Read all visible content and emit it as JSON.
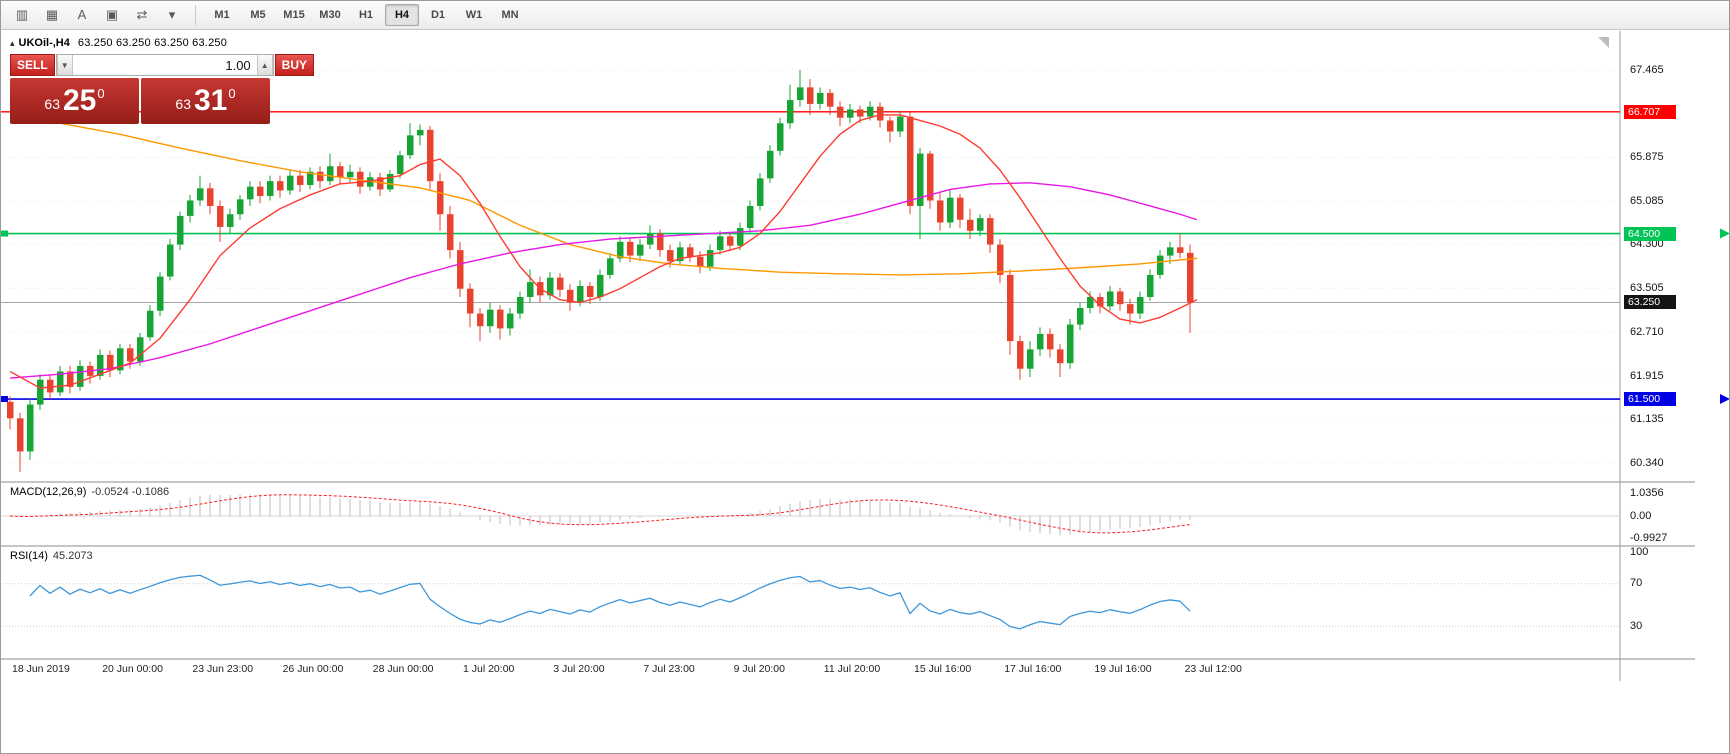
{
  "toolbar": {
    "icons": [
      {
        "name": "chart-type-icon",
        "glyph": "▥"
      },
      {
        "name": "grid-icon",
        "glyph": "▦"
      },
      {
        "name": "text-tool-icon",
        "glyph": "A"
      },
      {
        "name": "template-icon",
        "glyph": "▣"
      },
      {
        "name": "crosshair-tool-icon",
        "glyph": "⇄"
      },
      {
        "name": "dropdown-caret-icon",
        "glyph": "▾"
      }
    ],
    "timeframes": [
      {
        "label": "M1"
      },
      {
        "label": "M5"
      },
      {
        "label": "M15"
      },
      {
        "label": "M30"
      },
      {
        "label": "H1"
      },
      {
        "label": "H4",
        "active": true
      },
      {
        "label": "D1"
      },
      {
        "label": "W1"
      },
      {
        "label": "MN"
      }
    ]
  },
  "header": {
    "collapse_icon": "▴",
    "symbol": "UKOil-,H4",
    "ohlc": "63.250 63.250 63.250 63.250"
  },
  "trade_panel": {
    "sell_label": "SELL",
    "buy_label": "BUY",
    "volume": "1.00",
    "volume_down_glyph": "▼",
    "volume_up_glyph": "▲",
    "sell_price": {
      "small": "63",
      "big": "25",
      "sup": "0"
    },
    "buy_price": {
      "small": "63",
      "big": "31",
      "sup": "0"
    }
  },
  "indicators": {
    "macd_label": "MACD(12,26,9)",
    "macd_values": "-0.0524 -0.1086",
    "rsi_label": "RSI(14)",
    "rsi_value": "45.2073"
  },
  "chart_data": {
    "type": "candlestick",
    "symbol": "UKOil-",
    "period": "H4",
    "ylim": [
      60.01,
      68.14
    ],
    "colors": {
      "bull": "#16a534",
      "bear": "#e8432e",
      "ma_fast_red": "#ff3b30",
      "ma_slow_orange": "#ff9800",
      "ma_mid_magenta": "#e817e8",
      "hline_red": "#ff0000",
      "hline_green": "#00c455",
      "hline_blue": "#0000e6",
      "current_price_line": "#a6a6a6",
      "macd_hist": "#bdbdbd",
      "macd_signal": "#ff1f1f",
      "rsi_line": "#3f97d9"
    },
    "price_ticks": [
      67.465,
      65.875,
      65.085,
      64.3,
      63.505,
      62.71,
      61.915,
      61.135,
      60.34
    ],
    "price_badges": [
      {
        "text": "66.707",
        "price": 66.707,
        "bg": "#ff0000",
        "name": "resistance-line-price-badge"
      },
      {
        "text": "64.500",
        "price": 64.5,
        "bg": "#00c455",
        "name": "support-line-price-badge"
      },
      {
        "text": "63.250",
        "price": 63.25,
        "bg": "#141414",
        "name": "current-price-badge"
      },
      {
        "text": "61.500",
        "price": 61.5,
        "bg": "#0000e6",
        "name": "lower-line-price-badge"
      }
    ],
    "hlines": [
      {
        "price": 66.707,
        "color_key": "hline_red",
        "width": 1.4,
        "edge_marker": false,
        "name": "horizontal-line-66-707"
      },
      {
        "price": 64.5,
        "color_key": "hline_green",
        "width": 1.6,
        "edge_marker": true,
        "name": "horizontal-line-64-500"
      },
      {
        "price": 61.5,
        "color_key": "hline_blue",
        "width": 1.6,
        "edge_marker": true,
        "name": "horizontal-line-61-500"
      },
      {
        "price": 63.25,
        "color_key": "current_price_line",
        "width": 1,
        "edge_marker": false,
        "name": "current-price-line"
      }
    ],
    "ohlc": [
      [
        61.45,
        61.55,
        60.95,
        61.15
      ],
      [
        61.15,
        61.25,
        60.18,
        60.55
      ],
      [
        60.55,
        61.5,
        60.4,
        61.4
      ],
      [
        61.4,
        61.95,
        61.3,
        61.85
      ],
      [
        61.85,
        61.95,
        61.5,
        61.62
      ],
      [
        61.62,
        62.1,
        61.55,
        62.0
      ],
      [
        62.0,
        62.1,
        61.6,
        61.72
      ],
      [
        61.72,
        62.2,
        61.65,
        62.1
      ],
      [
        62.1,
        62.18,
        61.78,
        61.92
      ],
      [
        61.92,
        62.4,
        61.85,
        62.3
      ],
      [
        62.3,
        62.38,
        61.9,
        62.02
      ],
      [
        62.02,
        62.5,
        61.95,
        62.42
      ],
      [
        62.42,
        62.5,
        62.05,
        62.18
      ],
      [
        62.18,
        62.7,
        62.1,
        62.62
      ],
      [
        62.62,
        63.2,
        62.55,
        63.1
      ],
      [
        63.1,
        63.8,
        63.0,
        63.72
      ],
      [
        63.72,
        64.4,
        63.65,
        64.3
      ],
      [
        64.3,
        64.9,
        64.2,
        64.82
      ],
      [
        64.82,
        65.2,
        64.7,
        65.1
      ],
      [
        65.1,
        65.55,
        65.0,
        65.32
      ],
      [
        65.32,
        65.42,
        64.85,
        65.0
      ],
      [
        65.0,
        65.1,
        64.35,
        64.62
      ],
      [
        64.62,
        64.95,
        64.5,
        64.85
      ],
      [
        64.85,
        65.2,
        64.75,
        65.12
      ],
      [
        65.12,
        65.45,
        65.0,
        65.35
      ],
      [
        65.35,
        65.45,
        65.05,
        65.18
      ],
      [
        65.18,
        65.55,
        65.1,
        65.45
      ],
      [
        65.45,
        65.55,
        65.15,
        65.28
      ],
      [
        65.28,
        65.65,
        65.2,
        65.55
      ],
      [
        65.55,
        65.65,
        65.25,
        65.38
      ],
      [
        65.38,
        65.7,
        65.3,
        65.62
      ],
      [
        65.62,
        65.72,
        65.32,
        65.45
      ],
      [
        65.45,
        65.95,
        65.38,
        65.72
      ],
      [
        65.72,
        65.8,
        65.4,
        65.52
      ],
      [
        65.52,
        65.75,
        65.42,
        65.62
      ],
      [
        65.62,
        65.7,
        65.22,
        65.35
      ],
      [
        65.35,
        65.62,
        65.28,
        65.52
      ],
      [
        65.52,
        65.6,
        65.18,
        65.3
      ],
      [
        65.3,
        65.65,
        65.25,
        65.58
      ],
      [
        65.58,
        66.0,
        65.5,
        65.92
      ],
      [
        65.92,
        66.5,
        65.85,
        66.28
      ],
      [
        66.28,
        66.48,
        66.1,
        66.38
      ],
      [
        66.38,
        66.45,
        65.3,
        65.45
      ],
      [
        65.45,
        65.6,
        64.55,
        64.85
      ],
      [
        64.85,
        65.0,
        64.05,
        64.2
      ],
      [
        64.2,
        64.35,
        63.35,
        63.5
      ],
      [
        63.5,
        63.6,
        62.8,
        63.05
      ],
      [
        63.05,
        63.15,
        62.55,
        62.82
      ],
      [
        62.82,
        63.25,
        62.7,
        63.12
      ],
      [
        63.12,
        63.2,
        62.58,
        62.78
      ],
      [
        62.78,
        63.15,
        62.65,
        63.05
      ],
      [
        63.05,
        63.45,
        62.95,
        63.35
      ],
      [
        63.35,
        63.85,
        63.25,
        63.62
      ],
      [
        63.62,
        63.72,
        63.25,
        63.38
      ],
      [
        63.38,
        63.8,
        63.3,
        63.7
      ],
      [
        63.7,
        63.78,
        63.35,
        63.48
      ],
      [
        63.48,
        63.58,
        63.1,
        63.25
      ],
      [
        63.25,
        63.65,
        63.18,
        63.55
      ],
      [
        63.55,
        63.62,
        63.22,
        63.35
      ],
      [
        63.35,
        63.85,
        63.28,
        63.75
      ],
      [
        63.75,
        64.15,
        63.68,
        64.05
      ],
      [
        64.05,
        64.45,
        63.98,
        64.35
      ],
      [
        64.35,
        64.42,
        63.98,
        64.1
      ],
      [
        64.1,
        64.4,
        64.0,
        64.3
      ],
      [
        64.3,
        64.65,
        64.22,
        64.5
      ],
      [
        64.5,
        64.58,
        64.08,
        64.2
      ],
      [
        64.2,
        64.3,
        63.88,
        64.0
      ],
      [
        64.0,
        64.35,
        63.92,
        64.25
      ],
      [
        64.25,
        64.32,
        63.98,
        64.08
      ],
      [
        64.08,
        64.18,
        63.78,
        63.9
      ],
      [
        63.9,
        64.3,
        63.82,
        64.2
      ],
      [
        64.2,
        64.55,
        64.12,
        64.45
      ],
      [
        64.45,
        64.52,
        64.18,
        64.28
      ],
      [
        64.28,
        64.7,
        64.2,
        64.6
      ],
      [
        64.6,
        65.1,
        64.52,
        65.0
      ],
      [
        65.0,
        65.6,
        64.92,
        65.5
      ],
      [
        65.5,
        66.1,
        65.42,
        66.0
      ],
      [
        66.0,
        66.6,
        65.92,
        66.5
      ],
      [
        66.5,
        67.2,
        66.4,
        66.92
      ],
      [
        66.92,
        67.465,
        66.8,
        67.15
      ],
      [
        67.15,
        67.3,
        66.65,
        66.85
      ],
      [
        66.85,
        67.15,
        66.75,
        67.05
      ],
      [
        67.05,
        67.12,
        66.65,
        66.8
      ],
      [
        66.8,
        66.9,
        66.45,
        66.6
      ],
      [
        66.6,
        66.85,
        66.5,
        66.75
      ],
      [
        66.75,
        66.82,
        66.5,
        66.62
      ],
      [
        66.62,
        66.9,
        66.55,
        66.8
      ],
      [
        66.8,
        66.88,
        66.42,
        66.55
      ],
      [
        66.55,
        66.62,
        66.15,
        66.35
      ],
      [
        66.35,
        66.72,
        66.25,
        66.62
      ],
      [
        66.62,
        66.7,
        64.85,
        65.0
      ],
      [
        65.0,
        66.05,
        64.4,
        65.95
      ],
      [
        65.95,
        66.0,
        64.95,
        65.1
      ],
      [
        65.1,
        65.25,
        64.55,
        64.7
      ],
      [
        64.7,
        65.3,
        64.6,
        65.15
      ],
      [
        65.15,
        65.22,
        64.6,
        64.75
      ],
      [
        64.75,
        64.95,
        64.4,
        64.55
      ],
      [
        64.55,
        64.85,
        64.45,
        64.78
      ],
      [
        64.78,
        64.85,
        64.15,
        64.3
      ],
      [
        64.3,
        64.4,
        63.6,
        63.75
      ],
      [
        63.75,
        63.85,
        62.3,
        62.55
      ],
      [
        62.55,
        62.65,
        61.85,
        62.05
      ],
      [
        62.05,
        62.55,
        61.9,
        62.4
      ],
      [
        62.4,
        62.8,
        62.28,
        62.68
      ],
      [
        62.68,
        62.78,
        62.25,
        62.4
      ],
      [
        62.4,
        62.5,
        61.9,
        62.15
      ],
      [
        62.15,
        62.95,
        62.05,
        62.85
      ],
      [
        62.85,
        63.25,
        62.75,
        63.15
      ],
      [
        63.15,
        63.45,
        63.05,
        63.35
      ],
      [
        63.35,
        63.42,
        63.05,
        63.18
      ],
      [
        63.18,
        63.55,
        63.1,
        63.45
      ],
      [
        63.45,
        63.52,
        63.1,
        63.22
      ],
      [
        63.22,
        63.32,
        62.85,
        63.05
      ],
      [
        63.05,
        63.45,
        62.95,
        63.35
      ],
      [
        63.35,
        63.85,
        63.28,
        63.75
      ],
      [
        63.75,
        64.2,
        63.68,
        64.1
      ],
      [
        64.1,
        64.35,
        63.95,
        64.25
      ],
      [
        64.25,
        64.5,
        64.05,
        64.15
      ],
      [
        64.15,
        64.3,
        62.7,
        63.25
      ]
    ],
    "moving_averages": [
      {
        "name": "ma-slow-orange",
        "color_key": "ma_slow_orange",
        "points": [
          [
            10,
            66.6
          ],
          [
            60,
            66.5
          ],
          [
            120,
            66.3
          ],
          [
            180,
            66.05
          ],
          [
            240,
            65.82
          ],
          [
            300,
            65.62
          ],
          [
            360,
            65.47
          ],
          [
            420,
            65.33
          ],
          [
            470,
            65.1
          ],
          [
            520,
            64.65
          ],
          [
            570,
            64.3
          ],
          [
            620,
            64.08
          ],
          [
            670,
            63.95
          ],
          [
            720,
            63.87
          ],
          [
            780,
            63.8
          ],
          [
            840,
            63.77
          ],
          [
            900,
            63.75
          ],
          [
            960,
            63.77
          ],
          [
            1020,
            63.82
          ],
          [
            1080,
            63.88
          ],
          [
            1140,
            63.95
          ],
          [
            1197,
            64.05
          ]
        ]
      },
      {
        "name": "ma-mid-magenta",
        "color_key": "ma_mid_magenta",
        "points": [
          [
            10,
            61.88
          ],
          [
            60,
            61.95
          ],
          [
            110,
            62.05
          ],
          [
            160,
            62.25
          ],
          [
            210,
            62.5
          ],
          [
            260,
            62.8
          ],
          [
            310,
            63.1
          ],
          [
            360,
            63.4
          ],
          [
            410,
            63.7
          ],
          [
            460,
            63.95
          ],
          [
            510,
            64.15
          ],
          [
            560,
            64.3
          ],
          [
            610,
            64.4
          ],
          [
            660,
            64.45
          ],
          [
            710,
            64.5
          ],
          [
            760,
            64.55
          ],
          [
            810,
            64.65
          ],
          [
            860,
            64.85
          ],
          [
            910,
            65.1
          ],
          [
            950,
            65.3
          ],
          [
            990,
            65.4
          ],
          [
            1030,
            65.42
          ],
          [
            1070,
            65.35
          ],
          [
            1110,
            65.2
          ],
          [
            1150,
            65.0
          ],
          [
            1180,
            64.85
          ],
          [
            1197,
            64.75
          ]
        ]
      },
      {
        "name": "ma-fast-red",
        "color_key": "ma_fast_red",
        "points": [
          [
            10,
            62.0
          ],
          [
            40,
            61.7
          ],
          [
            70,
            61.75
          ],
          [
            100,
            61.95
          ],
          [
            130,
            62.15
          ],
          [
            160,
            62.6
          ],
          [
            190,
            63.3
          ],
          [
            220,
            64.1
          ],
          [
            250,
            64.6
          ],
          [
            280,
            64.95
          ],
          [
            310,
            65.2
          ],
          [
            340,
            65.4
          ],
          [
            370,
            65.45
          ],
          [
            400,
            65.55
          ],
          [
            420,
            65.75
          ],
          [
            440,
            65.85
          ],
          [
            460,
            65.55
          ],
          [
            480,
            65.05
          ],
          [
            500,
            64.45
          ],
          [
            520,
            63.9
          ],
          [
            540,
            63.5
          ],
          [
            560,
            63.3
          ],
          [
            580,
            63.25
          ],
          [
            600,
            63.35
          ],
          [
            620,
            63.5
          ],
          [
            640,
            63.7
          ],
          [
            660,
            63.9
          ],
          [
            680,
            64.05
          ],
          [
            700,
            64.1
          ],
          [
            720,
            64.15
          ],
          [
            740,
            64.25
          ],
          [
            760,
            64.5
          ],
          [
            780,
            64.9
          ],
          [
            800,
            65.4
          ],
          [
            820,
            65.9
          ],
          [
            840,
            66.3
          ],
          [
            860,
            66.55
          ],
          [
            880,
            66.65
          ],
          [
            900,
            66.65
          ],
          [
            920,
            66.55
          ],
          [
            940,
            66.45
          ],
          [
            960,
            66.3
          ],
          [
            980,
            66.05
          ],
          [
            1000,
            65.65
          ],
          [
            1020,
            65.15
          ],
          [
            1040,
            64.6
          ],
          [
            1060,
            64.05
          ],
          [
            1080,
            63.55
          ],
          [
            1100,
            63.2
          ],
          [
            1120,
            62.95
          ],
          [
            1140,
            62.88
          ],
          [
            1160,
            62.98
          ],
          [
            1180,
            63.15
          ],
          [
            1197,
            63.3
          ]
        ]
      }
    ],
    "macd": {
      "params": [
        12,
        26,
        9
      ],
      "scale_ticks": [
        {
          "text": "1.0356",
          "v": 1.0356
        },
        {
          "text": "0.00",
          "v": 0
        },
        {
          "text": "-0.9927",
          "v": -0.9927
        }
      ]
    },
    "rsi": {
      "period": 14,
      "levels": [
        70,
        30
      ],
      "scale_ticks": [
        {
          "text": "100",
          "v": 100
        },
        {
          "text": "70",
          "v": 70
        },
        {
          "text": "30",
          "v": 30
        }
      ]
    },
    "time_labels": [
      "18 Jun 2019",
      "20 Jun 00:00",
      "23 Jun 23:00",
      "26 Jun 00:00",
      "28 Jun 00:00",
      "1 Jul 20:00",
      "3 Jul 20:00",
      "7 Jul 23:00",
      "9 Jul 20:00",
      "11 Jul 20:00",
      "15 Jul 16:00",
      "17 Jul 16:00",
      "19 Jul 16:00",
      "23 Jul 12:00"
    ]
  }
}
